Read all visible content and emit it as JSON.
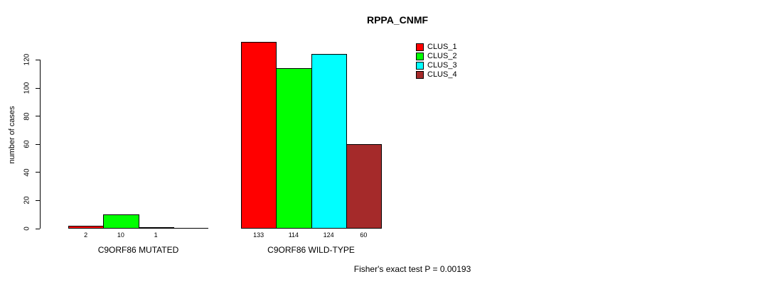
{
  "chart_data": {
    "type": "bar",
    "title": "RPPA_CNMF",
    "ylabel": "number of cases",
    "ylim": [
      0,
      133
    ],
    "yticks": [
      0,
      20,
      40,
      60,
      80,
      100,
      120
    ],
    "grid": false,
    "legend_position": "top-right",
    "categories": [
      "C9ORF86 MUTATED",
      "C9ORF86 WILD-TYPE"
    ],
    "series": [
      {
        "name": "CLUS_1",
        "color": "#FF0000",
        "values": [
          2,
          133
        ]
      },
      {
        "name": "CLUS_2",
        "color": "#00FF00",
        "values": [
          10,
          114
        ]
      },
      {
        "name": "CLUS_3",
        "color": "#00FFFF",
        "values": [
          1,
          124
        ]
      },
      {
        "name": "CLUS_4",
        "color": "#A52A2A",
        "values": [
          0,
          60
        ]
      }
    ],
    "bar_value_labels": [
      [
        "2",
        "10",
        "1",
        ""
      ],
      [
        "133",
        "114",
        "124",
        "60"
      ]
    ],
    "annotation": "Fisher's exact test P = 0.00193",
    "axis_color": "#000000",
    "background_color": "#FFFFFF"
  }
}
